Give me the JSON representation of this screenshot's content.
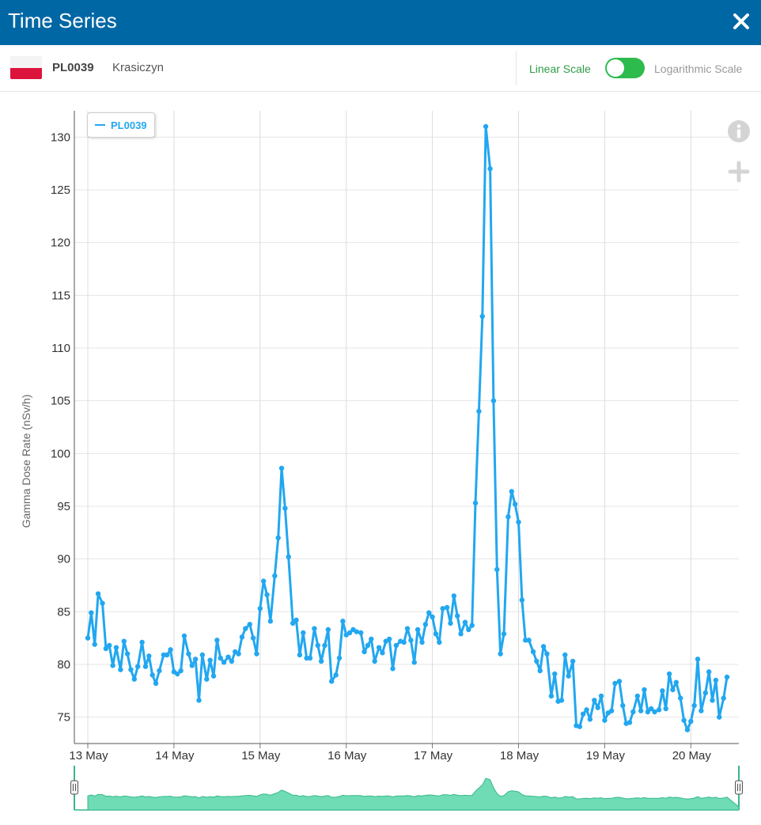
{
  "window": {
    "title": "Time Series",
    "close_icon": "close-icon"
  },
  "station": {
    "code": "PL0039",
    "name": "Krasiczyn",
    "flag_icon": "poland-flag-icon"
  },
  "scale_toggle": {
    "linear_label": "Linear Scale",
    "log_label": "Logarithmic Scale",
    "selected": "Linear Scale"
  },
  "tools": {
    "info_icon": "info-icon",
    "zoom_icon": "plus-icon"
  },
  "colors": {
    "header": "#0067a5",
    "series": "#22a7f0",
    "toggle_on": "#2dbb4d",
    "navigator_fill": "#6fdcb5",
    "navigator_line": "#37b88a"
  },
  "chart_data": {
    "type": "line",
    "title": "",
    "xlabel": "",
    "ylabel": "Gamma Dose Rate (nSv/h)",
    "x_tick_labels": [
      "13 May",
      "14 May",
      "15 May",
      "16 May",
      "17 May",
      "18 May",
      "19 May",
      "20 May"
    ],
    "ylim": [
      72.5,
      132.5
    ],
    "y_ticks": [
      75,
      80,
      85,
      90,
      95,
      100,
      105,
      110,
      115,
      120,
      125,
      130
    ],
    "grid": true,
    "legend": "top-left",
    "x_unit": "days from 13 May 00:00",
    "series": [
      {
        "name": "PL0039",
        "points": [
          [
            0.0,
            82.5
          ],
          [
            0.04,
            84.9
          ],
          [
            0.08,
            81.9
          ],
          [
            0.12,
            86.7
          ],
          [
            0.17,
            85.8
          ],
          [
            0.21,
            81.5
          ],
          [
            0.25,
            81.8
          ],
          [
            0.29,
            79.9
          ],
          [
            0.33,
            81.6
          ],
          [
            0.38,
            79.5
          ],
          [
            0.42,
            82.2
          ],
          [
            0.46,
            81.0
          ],
          [
            0.5,
            79.5
          ],
          [
            0.54,
            78.6
          ],
          [
            0.58,
            79.8
          ],
          [
            0.63,
            82.1
          ],
          [
            0.67,
            79.8
          ],
          [
            0.71,
            80.8
          ],
          [
            0.75,
            79.0
          ],
          [
            0.79,
            78.2
          ],
          [
            0.83,
            79.4
          ],
          [
            0.88,
            80.9
          ],
          [
            0.92,
            80.9
          ],
          [
            0.96,
            81.4
          ],
          [
            1.0,
            79.3
          ],
          [
            1.04,
            79.1
          ],
          [
            1.08,
            79.4
          ],
          [
            1.12,
            82.7
          ],
          [
            1.17,
            81.0
          ],
          [
            1.21,
            79.9
          ],
          [
            1.25,
            80.5
          ],
          [
            1.29,
            76.6
          ],
          [
            1.33,
            80.9
          ],
          [
            1.38,
            78.6
          ],
          [
            1.42,
            80.4
          ],
          [
            1.46,
            78.9
          ],
          [
            1.5,
            82.3
          ],
          [
            1.54,
            80.6
          ],
          [
            1.58,
            80.2
          ],
          [
            1.63,
            80.7
          ],
          [
            1.67,
            80.3
          ],
          [
            1.71,
            81.2
          ],
          [
            1.75,
            81.0
          ],
          [
            1.79,
            82.6
          ],
          [
            1.83,
            83.4
          ],
          [
            1.88,
            83.8
          ],
          [
            1.92,
            82.5
          ],
          [
            1.96,
            81.0
          ],
          [
            2.0,
            85.3
          ],
          [
            2.04,
            87.9
          ],
          [
            2.08,
            86.6
          ],
          [
            2.12,
            84.1
          ],
          [
            2.17,
            88.4
          ],
          [
            2.21,
            92.0
          ],
          [
            2.25,
            98.6
          ],
          [
            2.29,
            94.8
          ],
          [
            2.33,
            90.2
          ],
          [
            2.38,
            83.9
          ],
          [
            2.42,
            84.2
          ],
          [
            2.46,
            80.9
          ],
          [
            2.5,
            83.0
          ],
          [
            2.54,
            80.6
          ],
          [
            2.58,
            80.6
          ],
          [
            2.63,
            83.4
          ],
          [
            2.67,
            81.8
          ],
          [
            2.71,
            80.3
          ],
          [
            2.75,
            81.8
          ],
          [
            2.79,
            83.3
          ],
          [
            2.83,
            78.4
          ],
          [
            2.88,
            79.0
          ],
          [
            2.92,
            80.6
          ],
          [
            2.96,
            84.1
          ],
          [
            3.0,
            82.8
          ],
          [
            3.04,
            83.0
          ],
          [
            3.08,
            83.3
          ],
          [
            3.12,
            83.1
          ],
          [
            3.17,
            83.0
          ],
          [
            3.21,
            81.2
          ],
          [
            3.25,
            81.8
          ],
          [
            3.29,
            82.4
          ],
          [
            3.33,
            80.3
          ],
          [
            3.38,
            81.6
          ],
          [
            3.42,
            81.1
          ],
          [
            3.46,
            82.2
          ],
          [
            3.5,
            82.4
          ],
          [
            3.54,
            79.6
          ],
          [
            3.58,
            81.8
          ],
          [
            3.63,
            82.2
          ],
          [
            3.67,
            82.1
          ],
          [
            3.71,
            83.4
          ],
          [
            3.75,
            82.3
          ],
          [
            3.79,
            80.2
          ],
          [
            3.83,
            83.3
          ],
          [
            3.88,
            82.1
          ],
          [
            3.92,
            83.8
          ],
          [
            3.96,
            84.9
          ],
          [
            4.0,
            84.5
          ],
          [
            4.04,
            82.9
          ],
          [
            4.08,
            82.1
          ],
          [
            4.12,
            85.3
          ],
          [
            4.17,
            85.4
          ],
          [
            4.21,
            83.9
          ],
          [
            4.25,
            86.5
          ],
          [
            4.29,
            84.6
          ],
          [
            4.33,
            82.9
          ],
          [
            4.38,
            84.0
          ],
          [
            4.42,
            83.3
          ],
          [
            4.46,
            83.7
          ],
          [
            4.5,
            95.3
          ],
          [
            4.54,
            104.0
          ],
          [
            4.58,
            113.0
          ],
          [
            4.62,
            131.0
          ],
          [
            4.67,
            127.0
          ],
          [
            4.71,
            105.0
          ],
          [
            4.75,
            89.0
          ],
          [
            4.79,
            81.0
          ],
          [
            4.83,
            82.9
          ],
          [
            4.88,
            94.0
          ],
          [
            4.92,
            96.4
          ],
          [
            4.96,
            95.2
          ],
          [
            5.0,
            93.5
          ],
          [
            5.04,
            86.1
          ],
          [
            5.08,
            82.3
          ],
          [
            5.12,
            82.3
          ],
          [
            5.17,
            81.2
          ],
          [
            5.21,
            80.3
          ],
          [
            5.25,
            79.4
          ],
          [
            5.29,
            81.7
          ],
          [
            5.33,
            81.0
          ],
          [
            5.38,
            77.0
          ],
          [
            5.42,
            79.1
          ],
          [
            5.46,
            76.5
          ],
          [
            5.5,
            76.6
          ],
          [
            5.54,
            80.9
          ],
          [
            5.58,
            78.9
          ],
          [
            5.63,
            80.3
          ],
          [
            5.67,
            74.2
          ],
          [
            5.71,
            74.1
          ],
          [
            5.75,
            75.3
          ],
          [
            5.79,
            75.7
          ],
          [
            5.83,
            74.8
          ],
          [
            5.88,
            76.6
          ],
          [
            5.92,
            75.9
          ],
          [
            5.96,
            77.0
          ],
          [
            6.0,
            74.7
          ],
          [
            6.04,
            75.4
          ],
          [
            6.08,
            75.6
          ],
          [
            6.12,
            78.2
          ],
          [
            6.17,
            78.4
          ],
          [
            6.21,
            76.1
          ],
          [
            6.25,
            74.4
          ],
          [
            6.29,
            74.5
          ],
          [
            6.33,
            75.5
          ],
          [
            6.38,
            77.0
          ],
          [
            6.42,
            75.6
          ],
          [
            6.46,
            77.6
          ],
          [
            6.5,
            75.5
          ],
          [
            6.54,
            75.8
          ],
          [
            6.58,
            75.5
          ],
          [
            6.63,
            75.7
          ],
          [
            6.67,
            77.5
          ],
          [
            6.71,
            75.8
          ],
          [
            6.75,
            79.1
          ],
          [
            6.79,
            77.6
          ],
          [
            6.83,
            78.3
          ],
          [
            6.88,
            76.8
          ],
          [
            6.92,
            74.7
          ],
          [
            6.96,
            73.8
          ],
          [
            7.0,
            74.6
          ],
          [
            7.04,
            76.1
          ],
          [
            7.08,
            80.5
          ],
          [
            7.12,
            75.6
          ],
          [
            7.17,
            77.3
          ],
          [
            7.21,
            79.3
          ],
          [
            7.25,
            76.6
          ],
          [
            7.29,
            78.5
          ],
          [
            7.33,
            75.0
          ],
          [
            7.38,
            76.8
          ],
          [
            7.42,
            78.8
          ]
        ]
      }
    ]
  }
}
